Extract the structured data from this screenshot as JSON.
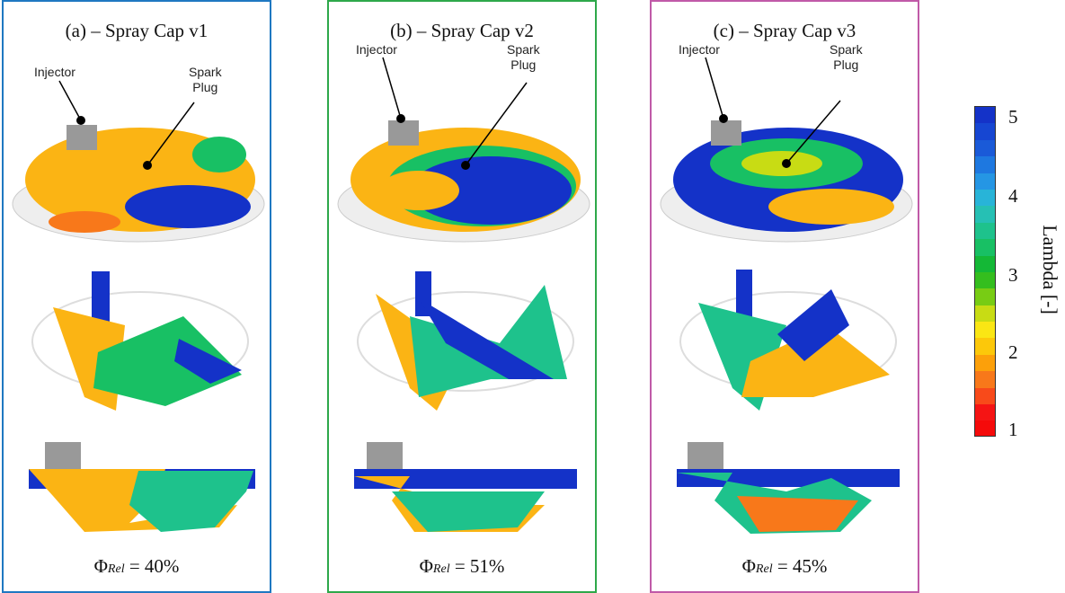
{
  "panels": [
    {
      "title": "(a) – Spray Cap v1",
      "phi_value": "= 40%",
      "border": "#1f78c1"
    },
    {
      "title": "(b) – Spray Cap v2",
      "phi_value": "= 51%",
      "border": "#2ea84a"
    },
    {
      "title": "(c) – Spray Cap v3",
      "phi_value": "= 45%",
      "border": "#c05aa8"
    }
  ],
  "labels": {
    "injector": "Injector",
    "spark_line1": "Spark",
    "spark_line2": "Plug"
  },
  "phi_symbol": "Φ",
  "phi_subscript": "Rel",
  "colorbar": {
    "title": "Lambda [-]",
    "ticks": [
      "5",
      "4",
      "3",
      "2",
      "1"
    ],
    "colors": [
      "#1432c8",
      "#1646d2",
      "#1a5ad8",
      "#1e78e0",
      "#2596e4",
      "#28b4d8",
      "#26c0b4",
      "#1ec28c",
      "#18c064",
      "#14b836",
      "#34be1e",
      "#78cc14",
      "#c8dc14",
      "#fae614",
      "#fcc80a",
      "#fca00a",
      "#f8781a",
      "#f84a1a",
      "#f51414",
      "#f50a0a"
    ]
  }
}
